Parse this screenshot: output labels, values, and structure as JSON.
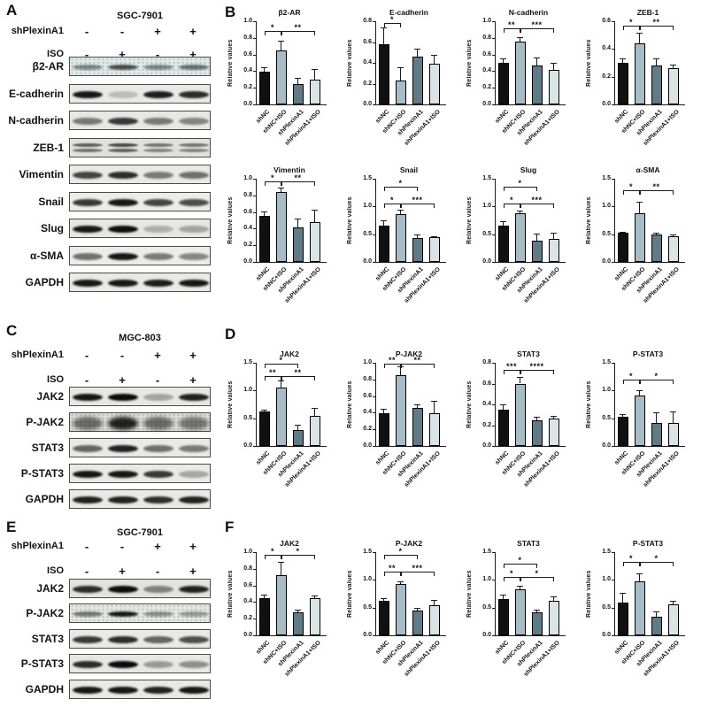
{
  "categories": [
    "shNC",
    "shNC+ISO",
    "shPlexinA1",
    "shPlexinA1+ISO"
  ],
  "bar_colors": [
    "#111111",
    "#a6bdc7",
    "#5e7b87",
    "#d9e4e7"
  ],
  "ylabel": "Relative values",
  "blot_panels": [
    {
      "letter": "A",
      "cell_line": "SGC-7901",
      "conditions": [
        {
          "label": "shPlexinA1",
          "values": [
            "-",
            "-",
            "+",
            "+"
          ]
        },
        {
          "label": "ISO",
          "values": [
            "-",
            "+",
            "-",
            "+"
          ]
        }
      ],
      "blots": [
        {
          "label": "β2-AR",
          "style": "noisy",
          "bg": "#dde8e8",
          "lanes": [
            0.45,
            0.7,
            0.45,
            0.55
          ]
        },
        {
          "label": "E-cadherin",
          "style": "band",
          "bg": "#e9e9e6",
          "lanes": [
            0.95,
            0.2,
            0.92,
            0.85
          ]
        },
        {
          "label": "N-cadherin",
          "style": "band",
          "bg": "#e7e7e4",
          "lanes": [
            0.5,
            0.8,
            0.5,
            0.45
          ]
        },
        {
          "label": "ZEB-1",
          "style": "double",
          "bg": "#e0e0dc",
          "lanes": [
            0.6,
            0.7,
            0.5,
            0.5
          ]
        },
        {
          "label": "Vimentin",
          "style": "band",
          "bg": "#e9e9e6",
          "lanes": [
            0.75,
            0.85,
            0.5,
            0.55
          ]
        },
        {
          "label": "Snail",
          "style": "band",
          "bg": "#ececea",
          "lanes": [
            0.8,
            0.95,
            0.75,
            0.7
          ]
        },
        {
          "label": "Slug",
          "style": "band",
          "bg": "#e6e6e2",
          "lanes": [
            0.95,
            1.0,
            0.25,
            0.3
          ]
        },
        {
          "label": "α-SMA",
          "style": "band",
          "bg": "#ececea",
          "lanes": [
            0.55,
            0.95,
            0.5,
            0.45
          ]
        },
        {
          "label": "GAPDH",
          "style": "band",
          "bg": "#e9e9e6",
          "lanes": [
            0.95,
            0.95,
            0.92,
            0.95
          ]
        }
      ]
    },
    {
      "letter": "C",
      "cell_line": "MGC-803",
      "conditions": [
        {
          "label": "shPlexinA1",
          "values": [
            "-",
            "-",
            "+",
            "+"
          ]
        },
        {
          "label": "ISO",
          "values": [
            "-",
            "+",
            "-",
            "+"
          ]
        }
      ],
      "blots": [
        {
          "label": "JAK2",
          "style": "band",
          "bg": "#e7e7e4",
          "lanes": [
            0.95,
            1.0,
            0.3,
            0.9
          ]
        },
        {
          "label": "P-JAK2",
          "style": "smear",
          "bg": "#dcdcd8",
          "lanes": [
            0.55,
            0.9,
            0.55,
            0.5
          ]
        },
        {
          "label": "STAT3",
          "style": "band",
          "bg": "#e9e9e6",
          "lanes": [
            0.6,
            0.9,
            0.55,
            0.5
          ]
        },
        {
          "label": "P-STAT3",
          "style": "band",
          "bg": "#e9e9e6",
          "lanes": [
            0.95,
            0.95,
            0.8,
            0.3
          ]
        },
        {
          "label": "GAPDH",
          "style": "band",
          "bg": "#e9e9e6",
          "lanes": [
            0.9,
            0.9,
            0.85,
            0.9
          ]
        }
      ]
    },
    {
      "letter": "E",
      "cell_line": "SGC-7901",
      "conditions": [
        {
          "label": "shPlexinA1",
          "values": [
            "-",
            "-",
            "+",
            "+"
          ]
        },
        {
          "label": "ISO",
          "values": [
            "-",
            "+",
            "-",
            "+"
          ]
        }
      ],
      "blots": [
        {
          "label": "JAK2",
          "style": "band",
          "bg": "#e2e2de",
          "lanes": [
            0.85,
            1.0,
            0.45,
            0.9
          ]
        },
        {
          "label": "P-JAK2",
          "style": "noisy",
          "bg": "#e3e6e3",
          "lanes": [
            0.5,
            0.95,
            0.4,
            0.35
          ]
        },
        {
          "label": "STAT3",
          "style": "band",
          "bg": "#e9e9e6",
          "lanes": [
            0.8,
            0.85,
            0.6,
            0.7
          ]
        },
        {
          "label": "P-STAT3",
          "style": "band",
          "bg": "#e7e7e4",
          "lanes": [
            0.85,
            1.0,
            0.35,
            0.4
          ]
        },
        {
          "label": "GAPDH",
          "style": "band",
          "bg": "#e9e9e6",
          "lanes": [
            0.95,
            0.95,
            0.9,
            0.95
          ]
        }
      ]
    }
  ],
  "chart_data": {
    "type": "bar",
    "categories": [
      "shNC",
      "shNC+ISO",
      "shPlexinA1",
      "shPlexinA1+ISO"
    ],
    "ylabel": "Relative values",
    "legend": "none",
    "grid": false,
    "panels": [
      {
        "letter": "B",
        "rows": [
          [
            {
              "title": "β2-AR",
              "ymax": 1.0,
              "ystep": 0.2,
              "values": [
                0.39,
                0.65,
                0.24,
                0.3
              ],
              "errors": [
                0.06,
                0.12,
                0.08,
                0.13
              ],
              "sig": [
                {
                  "from": 0,
                  "to": 1,
                  "stars": "*",
                  "h": 0.88
                },
                {
                  "from": 1,
                  "to": 3,
                  "stars": "**",
                  "h": 0.88
                }
              ]
            },
            {
              "title": "E-cadherin",
              "ymax": 0.8,
              "ystep": 0.2,
              "values": [
                0.58,
                0.23,
                0.46,
                0.39
              ],
              "errors": [
                0.16,
                0.13,
                0.08,
                0.09
              ],
              "sig": [
                {
                  "from": 0,
                  "to": 1,
                  "stars": "*",
                  "h": 0.78
                }
              ]
            },
            {
              "title": "N-cadherin",
              "ymax": 1.0,
              "ystep": 0.2,
              "values": [
                0.5,
                0.76,
                0.47,
                0.41
              ],
              "errors": [
                0.05,
                0.05,
                0.09,
                0.09
              ],
              "sig": [
                {
                  "from": 0,
                  "to": 1,
                  "stars": "**",
                  "h": 0.92
                },
                {
                  "from": 1,
                  "to": 3,
                  "stars": "***",
                  "h": 0.92
                }
              ]
            },
            {
              "title": "ZEB-1",
              "ymax": 0.6,
              "ystep": 0.2,
              "values": [
                0.3,
                0.44,
                0.28,
                0.26
              ],
              "errors": [
                0.03,
                0.08,
                0.05,
                0.03
              ],
              "sig": [
                {
                  "from": 0,
                  "to": 1,
                  "stars": "*",
                  "h": 0.57
                },
                {
                  "from": 1,
                  "to": 3,
                  "stars": "**",
                  "h": 0.57
                }
              ]
            }
          ],
          [
            {
              "title": "Vimentin",
              "ymax": 1.0,
              "ystep": 0.2,
              "values": [
                0.55,
                0.84,
                0.42,
                0.48
              ],
              "errors": [
                0.06,
                0.05,
                0.1,
                0.15
              ],
              "sig": [
                {
                  "from": 0,
                  "to": 1,
                  "stars": "*",
                  "h": 0.97
                },
                {
                  "from": 1,
                  "to": 3,
                  "stars": "**",
                  "h": 0.97
                }
              ]
            },
            {
              "title": "Snail",
              "ymax": 1.5,
              "ystep": 0.5,
              "values": [
                0.65,
                0.86,
                0.43,
                0.44
              ],
              "errors": [
                0.1,
                0.08,
                0.07,
                0.02
              ],
              "sig": [
                {
                  "from": 0,
                  "to": 2,
                  "stars": "*",
                  "h": 1.35
                },
                {
                  "from": 0,
                  "to": 1,
                  "stars": "*",
                  "h": 1.05
                },
                {
                  "from": 1,
                  "to": 3,
                  "stars": "***",
                  "h": 1.05
                }
              ]
            },
            {
              "title": "Slug",
              "ymax": 1.5,
              "ystep": 0.5,
              "values": [
                0.65,
                0.88,
                0.39,
                0.42
              ],
              "errors": [
                0.08,
                0.04,
                0.12,
                0.1
              ],
              "sig": [
                {
                  "from": 0,
                  "to": 2,
                  "stars": "*",
                  "h": 1.35
                },
                {
                  "from": 0,
                  "to": 1,
                  "stars": "*",
                  "h": 1.05
                },
                {
                  "from": 1,
                  "to": 3,
                  "stars": "***",
                  "h": 1.05
                }
              ]
            },
            {
              "title": "α-SMA",
              "ymax": 1.5,
              "ystep": 0.5,
              "values": [
                0.53,
                0.88,
                0.49,
                0.47
              ],
              "errors": [
                0.02,
                0.21,
                0.03,
                0.02
              ],
              "sig": [
                {
                  "from": 0,
                  "to": 1,
                  "stars": "*",
                  "h": 1.3
                },
                {
                  "from": 1,
                  "to": 3,
                  "stars": "**",
                  "h": 1.3
                }
              ]
            }
          ]
        ]
      },
      {
        "letter": "D",
        "rows": [
          [
            {
              "title": "JAK2",
              "ymax": 1.5,
              "ystep": 0.5,
              "values": [
                0.62,
                1.05,
                0.28,
                0.55
              ],
              "errors": [
                0.04,
                0.13,
                0.11,
                0.13
              ],
              "sig": [
                {
                  "from": 0,
                  "to": 2,
                  "stars": "*",
                  "h": 1.48
                },
                {
                  "from": 0,
                  "to": 1,
                  "stars": "**",
                  "h": 1.26
                },
                {
                  "from": 1,
                  "to": 3,
                  "stars": "**",
                  "h": 1.26
                }
              ]
            },
            {
              "title": "P-JAK2",
              "ymax": 1.0,
              "ystep": 0.2,
              "values": [
                0.39,
                0.85,
                0.46,
                0.39
              ],
              "errors": [
                0.06,
                0.11,
                0.04,
                0.15
              ],
              "sig": [
                {
                  "from": 0,
                  "to": 1,
                  "stars": "**",
                  "h": 0.99
                },
                {
                  "from": 1,
                  "to": 3,
                  "stars": "**",
                  "h": 0.99
                }
              ]
            },
            {
              "title": "STAT3",
              "ymax": 0.8,
              "ystep": 0.2,
              "values": [
                0.35,
                0.6,
                0.25,
                0.26
              ],
              "errors": [
                0.05,
                0.06,
                0.03,
                0.03
              ],
              "sig": [
                {
                  "from": 0,
                  "to": 1,
                  "stars": "***",
                  "h": 0.73
                },
                {
                  "from": 1,
                  "to": 3,
                  "stars": "****",
                  "h": 0.73
                }
              ]
            },
            {
              "title": "P-STAT3",
              "ymax": 1.5,
              "ystep": 0.5,
              "values": [
                0.52,
                0.91,
                0.42,
                0.41
              ],
              "errors": [
                0.06,
                0.1,
                0.18,
                0.22
              ],
              "sig": [
                {
                  "from": 0,
                  "to": 1,
                  "stars": "*",
                  "h": 1.2
                },
                {
                  "from": 1,
                  "to": 3,
                  "stars": "*",
                  "h": 1.2
                }
              ]
            }
          ]
        ]
      },
      {
        "letter": "F",
        "rows": [
          [
            {
              "title": "JAK2",
              "ymax": 1.0,
              "ystep": 0.2,
              "values": [
                0.45,
                0.72,
                0.28,
                0.45
              ],
              "errors": [
                0.04,
                0.16,
                0.03,
                0.03
              ],
              "sig": [
                {
                  "from": 0,
                  "to": 1,
                  "stars": "*",
                  "h": 0.97
                },
                {
                  "from": 1,
                  "to": 3,
                  "stars": "*",
                  "h": 0.97
                }
              ]
            },
            {
              "title": "P-JAK2",
              "ymax": 1.5,
              "ystep": 0.5,
              "values": [
                0.63,
                0.92,
                0.44,
                0.55
              ],
              "errors": [
                0.04,
                0.06,
                0.06,
                0.09
              ],
              "sig": [
                {
                  "from": 0,
                  "to": 2,
                  "stars": "*",
                  "h": 1.45
                },
                {
                  "from": 0,
                  "to": 1,
                  "stars": "**",
                  "h": 1.15
                },
                {
                  "from": 1,
                  "to": 3,
                  "stars": "***",
                  "h": 1.15
                }
              ]
            },
            {
              "title": "STAT3",
              "ymax": 1.5,
              "ystep": 0.5,
              "values": [
                0.65,
                0.83,
                0.42,
                0.62
              ],
              "errors": [
                0.08,
                0.07,
                0.05,
                0.08
              ],
              "sig": [
                {
                  "from": 0,
                  "to": 2,
                  "stars": "*",
                  "h": 1.3
                },
                {
                  "from": 0,
                  "to": 1,
                  "stars": "*",
                  "h": 1.05
                },
                {
                  "from": 1,
                  "to": 3,
                  "stars": "*",
                  "h": 1.05
                }
              ]
            },
            {
              "title": "P-STAT3",
              "ymax": 1.5,
              "ystep": 0.5,
              "values": [
                0.59,
                0.97,
                0.33,
                0.56
              ],
              "errors": [
                0.17,
                0.15,
                0.1,
                0.06
              ],
              "sig": [
                {
                  "from": 0,
                  "to": 1,
                  "stars": "*",
                  "h": 1.32
                },
                {
                  "from": 1,
                  "to": 3,
                  "stars": "*",
                  "h": 1.32
                }
              ]
            }
          ]
        ]
      }
    ]
  }
}
